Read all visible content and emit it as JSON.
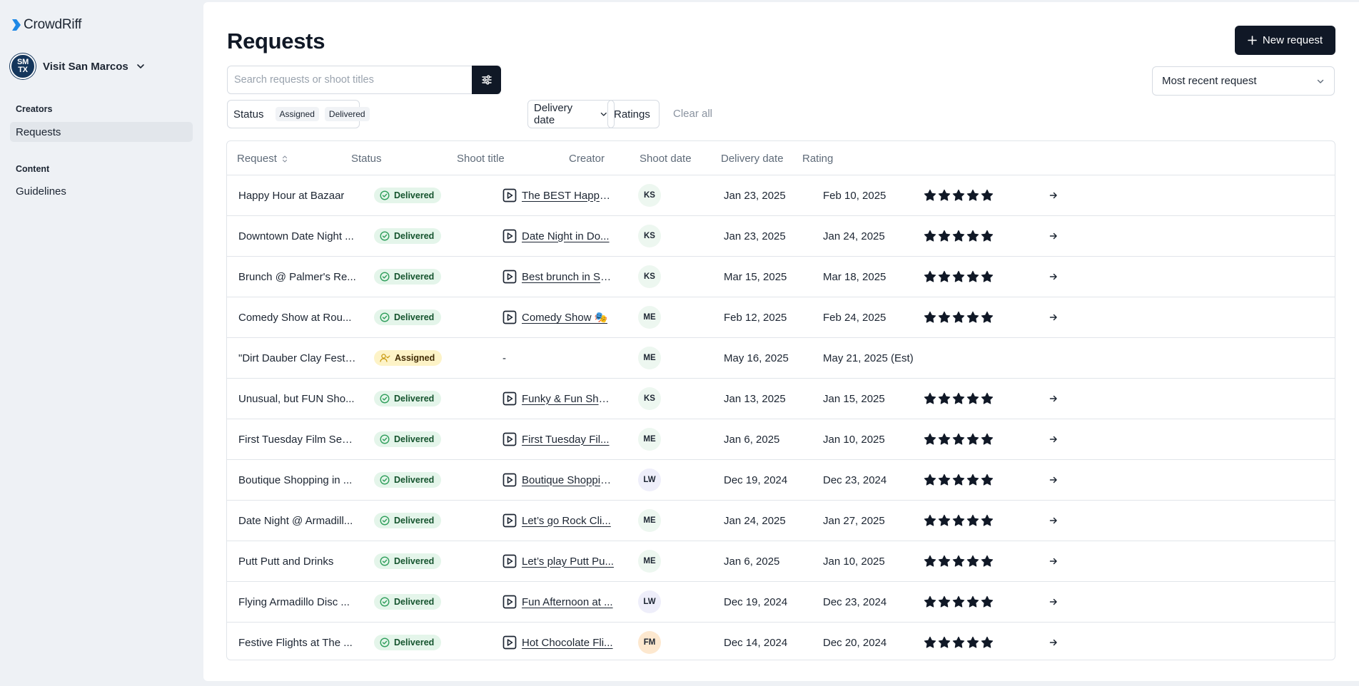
{
  "app": {
    "brand": "CrowdRiff"
  },
  "org": {
    "name": "Visit San Marcos",
    "avatar_line1": "SM",
    "avatar_line2": "TX"
  },
  "sidebar": {
    "sections": [
      {
        "title": "Creators",
        "items": [
          {
            "label": "Requests",
            "active": true
          }
        ]
      },
      {
        "title": "Content",
        "items": [
          {
            "label": "Guidelines",
            "active": false
          }
        ]
      }
    ]
  },
  "header": {
    "title": "Requests",
    "new_button": "New request"
  },
  "search": {
    "placeholder": "Search requests or shoot titles",
    "value": ""
  },
  "sort": {
    "selected": "Most recent request"
  },
  "filters": {
    "status_label": "Status",
    "status_tags": [
      "Assigned",
      "Delivered"
    ],
    "delivery_label": "Delivery date",
    "ratings_label": "Ratings",
    "clear_all": "Clear all"
  },
  "table": {
    "headers": {
      "request": "Request",
      "status": "Status",
      "shoot_title": "Shoot title",
      "creator": "Creator",
      "shoot_date": "Shoot date",
      "delivery_date": "Delivery date",
      "rating": "Rating"
    },
    "rows": [
      {
        "request": "Happy Hour at Bazaar",
        "status": "Delivered",
        "shoot_title": "The BEST Happy ...",
        "creator": "KS",
        "shoot_date": "Jan 23, 2025",
        "delivery_date": "Feb 10, 2025",
        "rating": 5
      },
      {
        "request": "Downtown Date Night ...",
        "status": "Delivered",
        "shoot_title": "Date Night in Do...",
        "creator": "KS",
        "shoot_date": "Jan 23, 2025",
        "delivery_date": "Jan 24, 2025",
        "rating": 5
      },
      {
        "request": "Brunch @ Palmer's Re...",
        "status": "Delivered",
        "shoot_title": "Best brunch in Sa...",
        "creator": "KS",
        "shoot_date": "Mar 15, 2025",
        "delivery_date": "Mar 18, 2025",
        "rating": 5
      },
      {
        "request": "Comedy Show at Rou...",
        "status": "Delivered",
        "shoot_title": "Comedy Show 🎭",
        "creator": "ME",
        "shoot_date": "Feb 12, 2025",
        "delivery_date": "Feb 24, 2025",
        "rating": 5
      },
      {
        "request": "\"Dirt Dauber Clay Festi...",
        "status": "Assigned",
        "shoot_title": "-",
        "creator": "ME",
        "shoot_date": "May 16, 2025",
        "delivery_date": "May 21, 2025 (Est)",
        "rating": 0
      },
      {
        "request": "Unusual, but FUN Sho...",
        "status": "Delivered",
        "shoot_title": "Funky & Fun Shop...",
        "creator": "KS",
        "shoot_date": "Jan 13, 2025",
        "delivery_date": "Jan 15, 2025",
        "rating": 5
      },
      {
        "request": "First Tuesday Film Seri...",
        "status": "Delivered",
        "shoot_title": "First Tuesday Fil...",
        "creator": "ME",
        "shoot_date": "Jan 6, 2025",
        "delivery_date": "Jan 10, 2025",
        "rating": 5
      },
      {
        "request": "Boutique Shopping in ...",
        "status": "Delivered",
        "shoot_title": "Boutique Shoppin...",
        "creator": "LW",
        "shoot_date": "Dec 19, 2024",
        "delivery_date": "Dec 23, 2024",
        "rating": 5
      },
      {
        "request": "Date Night @ Armadill...",
        "status": "Delivered",
        "shoot_title": "Let’s go Rock Cli...",
        "creator": "ME",
        "shoot_date": "Jan 24, 2025",
        "delivery_date": "Jan 27, 2025",
        "rating": 5
      },
      {
        "request": "Putt Putt and Drinks",
        "status": "Delivered",
        "shoot_title": "Let’s play Putt Pu...",
        "creator": "ME",
        "shoot_date": "Jan 6, 2025",
        "delivery_date": "Jan 10, 2025",
        "rating": 5
      },
      {
        "request": "Flying Armadillo Disc ...",
        "status": "Delivered",
        "shoot_title": "Fun Afternoon at ...",
        "creator": "LW",
        "shoot_date": "Dec 19, 2024",
        "delivery_date": "Dec 23, 2024",
        "rating": 5
      },
      {
        "request": "Festive Flights at The ...",
        "status": "Delivered",
        "shoot_title": "Hot Chocolate Fli...",
        "creator": "FM",
        "shoot_date": "Dec 14, 2024",
        "delivery_date": "Dec 20, 2024",
        "rating": 5
      }
    ]
  },
  "colors": {
    "primary": "#101826",
    "delivered_bg": "#e4f5ea",
    "delivered_icon": "#2f9e5b",
    "assigned_bg": "#fdf3c7",
    "assigned_icon": "#c99a12",
    "avatar_KS": "#edf7f0",
    "avatar_ME": "#edf7f0",
    "avatar_LW": "#eeeefa",
    "avatar_FM": "#fde8cf"
  },
  "icons": {
    "brand": "crowdriff-chevron-logo",
    "org_menu": "chevron-down-icon",
    "filter": "sliders-icon",
    "new": "plus-icon",
    "sort": "chevron-down-icon",
    "sort_column": "sort-updown-icon",
    "delivered": "check-circle-icon",
    "assigned": "user-check-icon",
    "shoot": "play-square-icon",
    "rating": "star-icon",
    "row_open": "arrow-right-icon"
  }
}
